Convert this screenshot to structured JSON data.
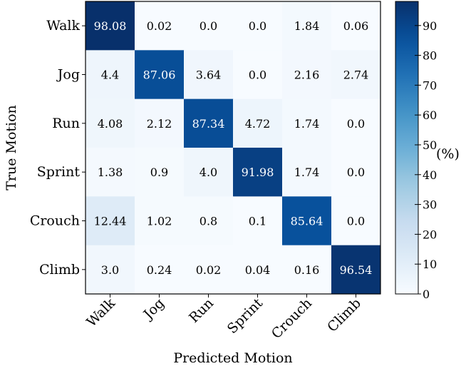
{
  "chart_data": {
    "type": "heatmap",
    "title": "",
    "xlabel": "Predicted Motion",
    "ylabel": "True Motion",
    "x_categories": [
      "Walk",
      "Jog",
      "Run",
      "Sprint",
      "Crouch",
      "Climb"
    ],
    "y_categories": [
      "Walk",
      "Jog",
      "Run",
      "Sprint",
      "Crouch",
      "Climb"
    ],
    "values": [
      [
        98.08,
        0.02,
        0.0,
        0.0,
        1.84,
        0.06
      ],
      [
        4.4,
        87.06,
        3.64,
        0.0,
        2.16,
        2.74
      ],
      [
        4.08,
        2.12,
        87.34,
        4.72,
        1.74,
        0.0
      ],
      [
        1.38,
        0.9,
        4.0,
        91.98,
        1.74,
        0.0
      ],
      [
        12.44,
        1.02,
        0.8,
        0.1,
        85.64,
        0.0
      ],
      [
        3.0,
        0.24,
        0.02,
        0.04,
        0.16,
        96.54
      ]
    ],
    "value_labels": [
      [
        "98.08",
        "0.02",
        "0.0",
        "0.0",
        "1.84",
        "0.06"
      ],
      [
        "4.4",
        "87.06",
        "3.64",
        "0.0",
        "2.16",
        "2.74"
      ],
      [
        "4.08",
        "2.12",
        "87.34",
        "4.72",
        "1.74",
        "0.0"
      ],
      [
        "1.38",
        "0.9",
        "4.0",
        "91.98",
        "1.74",
        "0.0"
      ],
      [
        "12.44",
        "1.02",
        "0.8",
        "0.1",
        "85.64",
        "0.0"
      ],
      [
        "3.0",
        "0.24",
        "0.02",
        "0.04",
        "0.16",
        "96.54"
      ]
    ],
    "colorbar": {
      "label": "(%)",
      "range": [
        0,
        98.08
      ],
      "ticks": [
        0,
        10,
        20,
        30,
        40,
        50,
        60,
        70,
        80,
        90
      ],
      "colormap": "Blues"
    },
    "grid": false
  }
}
